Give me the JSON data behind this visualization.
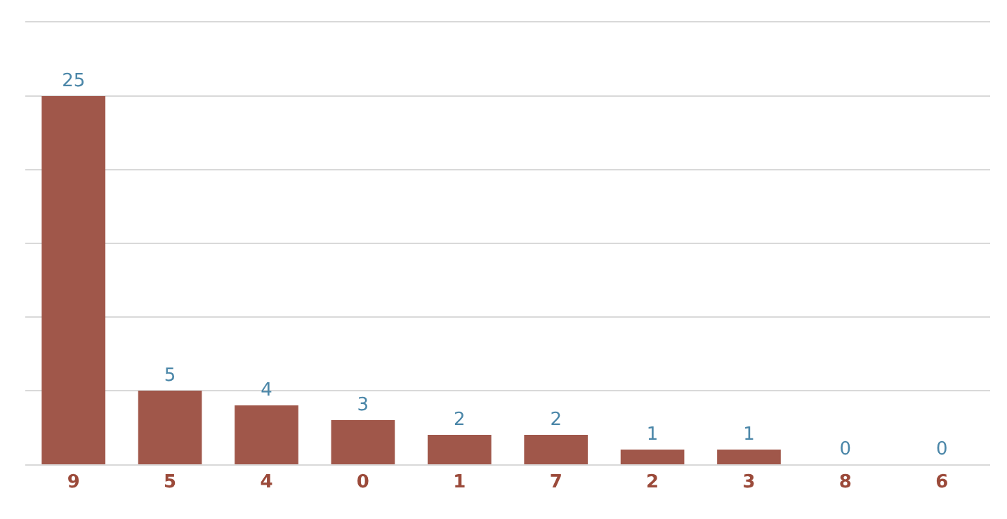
{
  "chart_data": {
    "type": "bar",
    "categories": [
      "9",
      "5",
      "4",
      "0",
      "1",
      "7",
      "2",
      "3",
      "8",
      "6"
    ],
    "values": [
      25,
      5,
      4,
      3,
      2,
      2,
      1,
      1,
      0,
      0
    ],
    "color": "#a0574a",
    "ylim": [
      0,
      30
    ],
    "yticks": [
      {
        "value": 0,
        "label": null
      },
      {
        "value": 5,
        "label": null
      },
      {
        "value": 10,
        "label": null
      },
      {
        "value": 15,
        "label": null
      },
      {
        "value": 20,
        "label": null
      },
      {
        "value": 25,
        "label": null
      },
      {
        "value": 30,
        "label": null
      }
    ],
    "grid": "y",
    "tick_labels": "x",
    "data_labels": true,
    "legend": false
  }
}
